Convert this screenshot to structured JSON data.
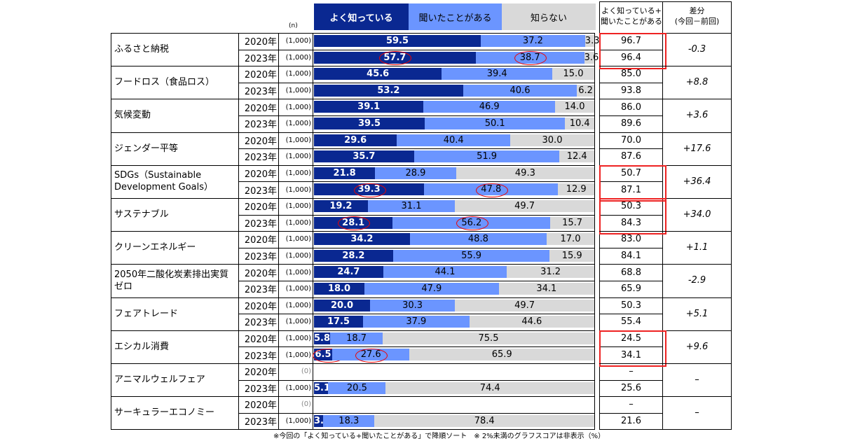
{
  "chart_data": {
    "type": "bar",
    "stacked": true,
    "orientation": "horizontal",
    "unit_note": "(%)",
    "legend": [
      "よく知っている",
      "聞いたことがある",
      "知らない"
    ],
    "colors": [
      "#0a2891",
      "#6b95ff",
      "#d9d9d9"
    ],
    "n_header": "(n)",
    "total_header": "よく知っている+\n聞いたことがある",
    "diff_header": "差分\n(今回－前回)",
    "footnote": "※今回の「よく知っている+聞いたことがある」で降順ソート　※ 2%未満のグラフスコアは非表示（%）",
    "items": [
      {
        "label": "ふるさと納税",
        "diff": "-0.3",
        "highlight": true,
        "rows": [
          {
            "year": "2020年",
            "n": "(1,000)",
            "values": [
              59.5,
              37.2,
              3.3
            ],
            "total": "96.7"
          },
          {
            "year": "2023年",
            "n": "(1,000)",
            "values": [
              57.7,
              38.7,
              3.6
            ],
            "total": "96.4",
            "circled": [
              0,
              1
            ]
          }
        ]
      },
      {
        "label": "フードロス（食品ロス）",
        "diff": "+8.8",
        "rows": [
          {
            "year": "2020年",
            "n": "(1,000)",
            "values": [
              45.6,
              39.4,
              15.0
            ],
            "total": "85.0"
          },
          {
            "year": "2023年",
            "n": "(1,000)",
            "values": [
              53.2,
              40.6,
              6.2
            ],
            "total": "93.8"
          }
        ]
      },
      {
        "label": "気候変動",
        "diff": "+3.6",
        "rows": [
          {
            "year": "2020年",
            "n": "(1,000)",
            "values": [
              39.1,
              46.9,
              14.0
            ],
            "total": "86.0"
          },
          {
            "year": "2023年",
            "n": "(1,000)",
            "values": [
              39.5,
              50.1,
              10.4
            ],
            "total": "89.6"
          }
        ]
      },
      {
        "label": "ジェンダー平等",
        "diff": "+17.6",
        "rows": [
          {
            "year": "2020年",
            "n": "(1,000)",
            "values": [
              29.6,
              40.4,
              30.0
            ],
            "total": "70.0"
          },
          {
            "year": "2023年",
            "n": "(1,000)",
            "values": [
              35.7,
              51.9,
              12.4
            ],
            "total": "87.6"
          }
        ]
      },
      {
        "label": "SDGs（Sustainable Development Goals）",
        "diff": "+36.4",
        "highlight": true,
        "rows": [
          {
            "year": "2020年",
            "n": "(1,000)",
            "values": [
              21.8,
              28.9,
              49.3
            ],
            "total": "50.7"
          },
          {
            "year": "2023年",
            "n": "(1,000)",
            "values": [
              39.3,
              47.8,
              12.9
            ],
            "total": "87.1",
            "circled": [
              0,
              1
            ]
          }
        ]
      },
      {
        "label": "サステナブル",
        "diff": "+34.0",
        "highlight": true,
        "rows": [
          {
            "year": "2020年",
            "n": "(1,000)",
            "values": [
              19.2,
              31.1,
              49.7
            ],
            "total": "50.3"
          },
          {
            "year": "2023年",
            "n": "(1,000)",
            "values": [
              28.1,
              56.2,
              15.7
            ],
            "total": "84.3",
            "circled": [
              0,
              1
            ]
          }
        ]
      },
      {
        "label": "クリーンエネルギー",
        "diff": "+1.1",
        "rows": [
          {
            "year": "2020年",
            "n": "(1,000)",
            "values": [
              34.2,
              48.8,
              17.0
            ],
            "total": "83.0"
          },
          {
            "year": "2023年",
            "n": "(1,000)",
            "values": [
              28.2,
              55.9,
              15.9
            ],
            "total": "84.1"
          }
        ]
      },
      {
        "label": "2050年二酸化炭素排出実質ゼロ",
        "diff": "-2.9",
        "rows": [
          {
            "year": "2020年",
            "n": "(1,000)",
            "values": [
              24.7,
              44.1,
              31.2
            ],
            "total": "68.8"
          },
          {
            "year": "2023年",
            "n": "(1,000)",
            "values": [
              18.0,
              47.9,
              34.1
            ],
            "total": "65.9"
          }
        ]
      },
      {
        "label": "フェアトレード",
        "diff": "+5.1",
        "rows": [
          {
            "year": "2020年",
            "n": "(1,000)",
            "values": [
              20.0,
              30.3,
              49.7
            ],
            "total": "50.3"
          },
          {
            "year": "2023年",
            "n": "(1,000)",
            "values": [
              17.5,
              37.9,
              44.6
            ],
            "total": "55.4"
          }
        ]
      },
      {
        "label": "エシカル消費",
        "diff": "+9.6",
        "highlight": true,
        "rows": [
          {
            "year": "2020年",
            "n": "(1,000)",
            "values": [
              5.8,
              18.7,
              75.5
            ],
            "total": "24.5"
          },
          {
            "year": "2023年",
            "n": "(1,000)",
            "values": [
              6.5,
              27.6,
              65.9
            ],
            "total": "34.1",
            "circled": [
              0,
              1
            ]
          }
        ]
      },
      {
        "label": "アニマルウェルフェア",
        "diff": "–",
        "rows": [
          {
            "year": "2020年",
            "n": "(0)",
            "values": [],
            "total": "–"
          },
          {
            "year": "2023年",
            "n": "(1,000)",
            "values": [
              5.1,
              20.5,
              74.4
            ],
            "total": "25.6"
          }
        ]
      },
      {
        "label": "サーキュラーエコノミー",
        "diff": "–",
        "rows": [
          {
            "year": "2020年",
            "n": "(0)",
            "values": [],
            "total": "–"
          },
          {
            "year": "2023年",
            "n": "(1,000)",
            "values": [
              3.3,
              18.3,
              78.4
            ],
            "total": "21.6"
          }
        ]
      }
    ]
  }
}
